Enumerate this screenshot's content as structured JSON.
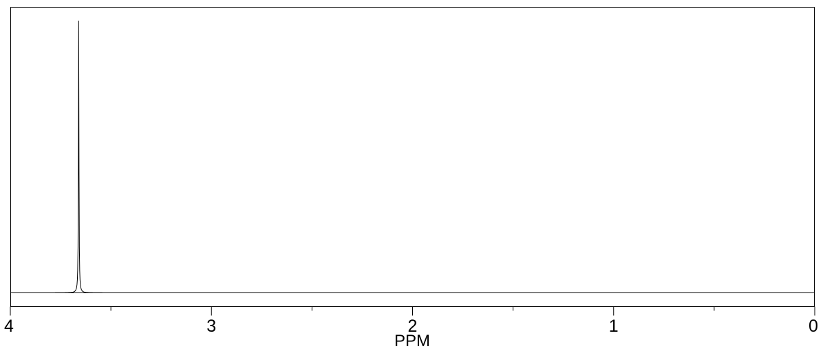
{
  "chart_data": {
    "type": "line",
    "title": "",
    "xlabel": "PPM",
    "ylabel": "",
    "xlim": [
      4,
      0
    ],
    "x_reversed": true,
    "ylim": [
      0,
      1
    ],
    "grid": false,
    "x_ticks_major": [
      4,
      3,
      2,
      1,
      0
    ],
    "x_tick_labels": [
      "4",
      "3",
      "2",
      "1",
      "0"
    ],
    "x_ticks_minor": [
      3.5,
      2.5,
      1.5,
      0.5
    ],
    "series": [
      {
        "peaks": [
          {
            "ppm": 3.66,
            "intensity": 1.0,
            "width_ppm": 0.003
          }
        ],
        "baseline": 0.0
      }
    ],
    "line_color": "#000000"
  }
}
